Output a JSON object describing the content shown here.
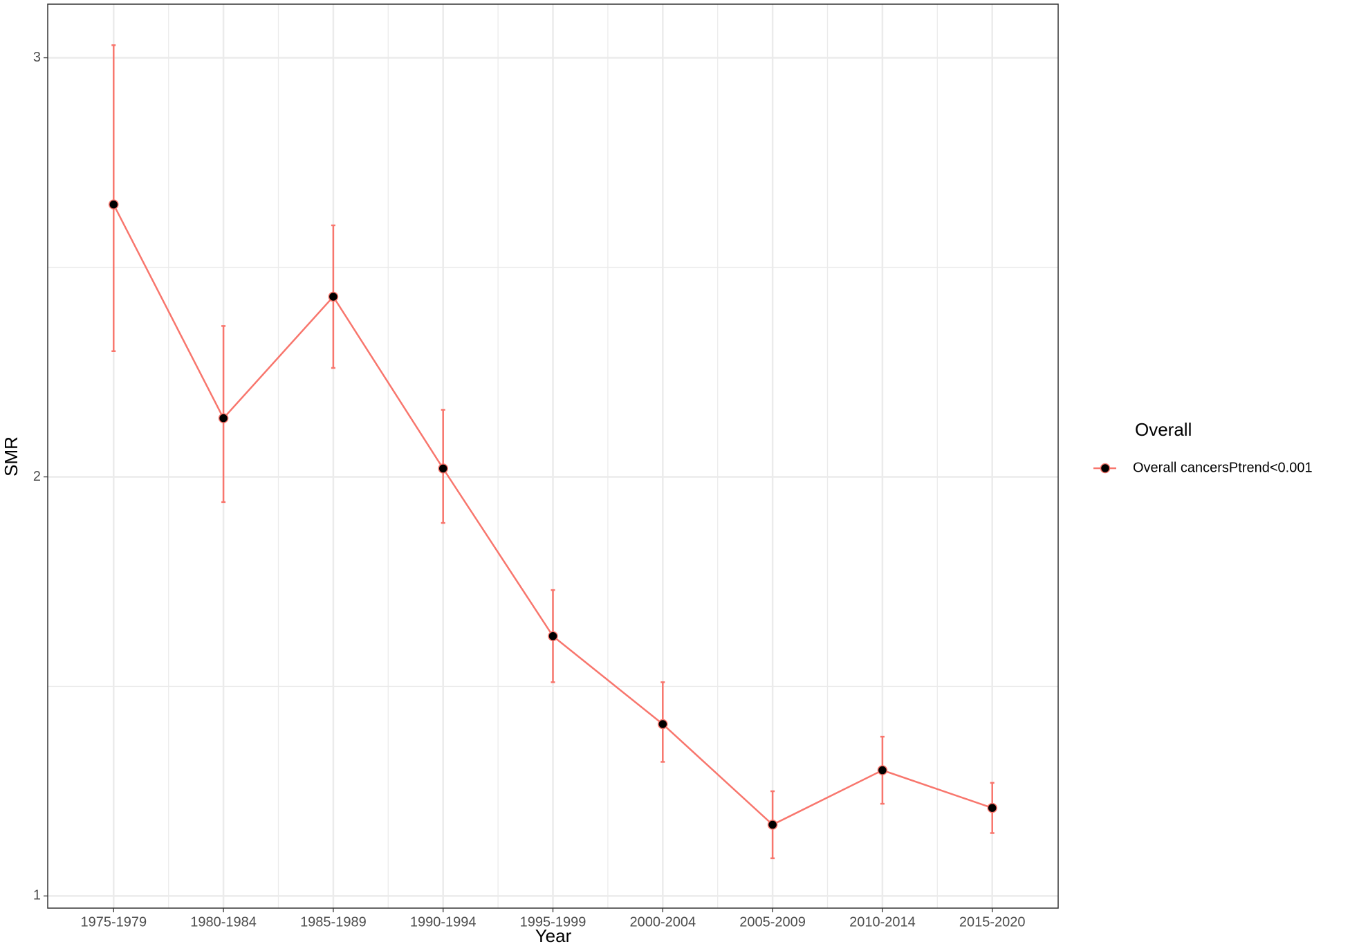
{
  "chart_data": {
    "type": "line",
    "x_label": "Year",
    "y_label": "SMR",
    "categories": [
      "1975-1979",
      "1980-1984",
      "1985-1989",
      "1990-1994",
      "1995-1999",
      "2000-2004",
      "2005-2009",
      "2010-2014",
      "2015-2020"
    ],
    "series": [
      {
        "name": "Overall cancersPtrend<0.001",
        "color": "#f8766d",
        "values": [
          2.65,
          2.14,
          2.43,
          2.02,
          1.62,
          1.41,
          1.17,
          1.3,
          1.21
        ],
        "lower": [
          2.3,
          1.94,
          2.26,
          1.89,
          1.51,
          1.32,
          1.09,
          1.22,
          1.15
        ],
        "upper": [
          3.03,
          2.36,
          2.6,
          2.16,
          1.73,
          1.51,
          1.25,
          1.38,
          1.27
        ]
      }
    ],
    "legend_title": "Overall",
    "legend": "right",
    "ylim": [
      0.971,
      3.128
    ],
    "yticks": [
      1,
      2,
      3
    ],
    "minor_yticks": [
      1.5,
      2.5
    ],
    "grid": true
  }
}
